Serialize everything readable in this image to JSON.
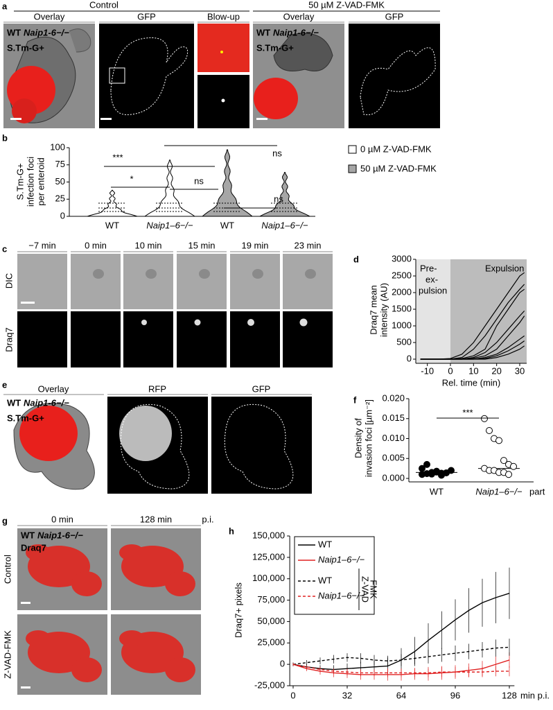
{
  "panel_labels": [
    "a",
    "b",
    "c",
    "d",
    "e",
    "f",
    "g",
    "h"
  ],
  "panel_a": {
    "groups": [
      "Control",
      "50 µM Z-VAD-FMK"
    ],
    "columns": [
      "Overlay",
      "GFP",
      "Blow-up",
      "Overlay",
      "GFP"
    ],
    "overlay_labels": [
      "WT",
      "Naip1-6−/−",
      "S.Tm-G+"
    ]
  },
  "panel_c": {
    "times": [
      "−7 min",
      "0 min",
      "10 min",
      "15 min",
      "19 min",
      "23 min"
    ],
    "rows": [
      "DIC",
      "Draq7"
    ]
  },
  "panel_e": {
    "columns": [
      "Overlay",
      "RFP",
      "GFP"
    ],
    "overlay_labels": [
      "WT",
      "Naip1-6−/−",
      "S.Tm-G+"
    ]
  },
  "panel_g": {
    "columns": [
      "0 min",
      "128 min"
    ],
    "time_unit": "p.i.",
    "rows": [
      "Control",
      "Z-VAD-FMK"
    ],
    "overlay_labels": [
      "WT",
      "Naip1-6−/−",
      "Draq7"
    ]
  },
  "chart_data": [
    {
      "type": "violin",
      "y_label": [
        "S.Tm-G+",
        "infection foci",
        "per enteroid"
      ],
      "categories": [
        "WT",
        "Naip1–6−/−",
        "WT",
        "Naip1–6−/−"
      ],
      "series": [
        {
          "name": "0 µM Z-VAD-FMK",
          "color": "#ffffff",
          "values": [
            38,
            82,
            null,
            null
          ]
        },
        {
          "name": "50 µM Z-VAD-FMK",
          "color": "#a6a6a6",
          "values": [
            null,
            null,
            97,
            64
          ]
        }
      ],
      "ylim": [
        0,
        100
      ],
      "yticks": [
        0,
        25,
        50,
        75,
        100
      ],
      "annotations": [
        "***",
        "*",
        "ns",
        "ns",
        "ns"
      ]
    },
    {
      "type": "line",
      "y_label": [
        "Draq7 mean",
        "intensity (AU)"
      ],
      "x_label": "Rel. time (min)",
      "annotations": [
        "Pre-",
        "ex-",
        "pulsion",
        "Expulsion"
      ],
      "x": [
        -13,
        -10,
        -5,
        0,
        5,
        10,
        15,
        20,
        25,
        30,
        32
      ],
      "series": [
        {
          "color": "#000000",
          "values": [
            0,
            0,
            0,
            20,
            150,
            500,
            1000,
            1500,
            2000,
            2500,
            2600
          ]
        },
        {
          "color": "#000000",
          "values": [
            0,
            0,
            0,
            0,
            50,
            300,
            700,
            1200,
            1700,
            2100,
            2250
          ]
        },
        {
          "color": "#000000",
          "values": [
            0,
            0,
            0,
            0,
            20,
            100,
            300,
            1000,
            1500,
            2000,
            2100
          ]
        },
        {
          "color": "#000000",
          "values": [
            0,
            0,
            0,
            0,
            0,
            50,
            200,
            500,
            900,
            1300,
            1450
          ]
        },
        {
          "color": "#000000",
          "values": [
            0,
            0,
            0,
            0,
            0,
            30,
            100,
            300,
            700,
            1100,
            1300
          ]
        },
        {
          "color": "#000000",
          "values": [
            0,
            0,
            0,
            0,
            0,
            0,
            50,
            150,
            350,
            600,
            700
          ]
        },
        {
          "color": "#000000",
          "values": [
            0,
            0,
            0,
            0,
            0,
            0,
            20,
            100,
            250,
            450,
            550
          ]
        },
        {
          "color": "#000000",
          "values": [
            0,
            0,
            0,
            0,
            0,
            0,
            0,
            50,
            150,
            300,
            400
          ]
        }
      ],
      "xlim": [
        -15,
        33
      ],
      "xticks": [
        -10,
        0,
        10,
        20,
        30
      ],
      "ylim": [
        0,
        3000
      ],
      "yticks": [
        0,
        500,
        1000,
        1500,
        2000,
        2500,
        3000
      ]
    },
    {
      "type": "strip",
      "y_label": [
        "Density of",
        "invasion foci [µm⁻²]"
      ],
      "categories": [
        "WT",
        "Naip1–6−/−"
      ],
      "annotations": [
        "***",
        "part"
      ],
      "values": [
        [
          0.001,
          0.0012,
          0.0015,
          0.0018,
          0.0008,
          0.0014,
          0.002,
          0.0025,
          0.0035,
          0.0011,
          0.0016,
          0.0013
        ],
        [
          0.015,
          0.012,
          0.01,
          0.0095,
          0.0045,
          0.0035,
          0.003,
          0.0025,
          0.002,
          0.002,
          0.0015,
          0.0015,
          0.001
        ]
      ],
      "medians": [
        0.0015,
        0.0025
      ],
      "point_fill": [
        "#000000",
        "#ffffff"
      ],
      "ylim": [
        0,
        0.02
      ],
      "yticks": [
        {
          "value": 0,
          "label": "0.000"
        },
        0.005,
        {
          "value": 0.01,
          "label": "0.010"
        },
        0.015,
        {
          "value": 0.02,
          "label": "0.020"
        }
      ]
    },
    {
      "type": "line",
      "y_label": "Draq7+ pixels",
      "x_label": "min p.i.",
      "legend_group_label": [
        "Z-VAD",
        "FMK"
      ],
      "x": [
        0,
        8,
        16,
        24,
        32,
        40,
        48,
        56,
        64,
        72,
        80,
        88,
        96,
        104,
        112,
        120,
        128
      ],
      "series": [
        {
          "name": "WT",
          "color": "#000000",
          "dash": false,
          "values": [
            0,
            -3000,
            -5000,
            -6000,
            -5000,
            -4000,
            -3000,
            -2000,
            5000,
            15000,
            28000,
            40000,
            52000,
            63000,
            72000,
            78000,
            83000
          ],
          "errors": [
            2000,
            3000,
            4000,
            5000,
            6000,
            7000,
            8000,
            10000,
            14000,
            17000,
            20000,
            22000,
            24000,
            26000,
            28000,
            30000,
            30000
          ]
        },
        {
          "name": "Naip1–6−/−",
          "color": "#e02020",
          "dash": false,
          "values": [
            0,
            -5000,
            -8000,
            -10000,
            -11000,
            -12000,
            -12000,
            -12000,
            -12000,
            -11000,
            -11000,
            -10000,
            -9000,
            -7000,
            -5000,
            0,
            5000
          ],
          "errors": [
            2000,
            3000,
            4000,
            5000,
            5000,
            6000,
            6000,
            7000,
            7000,
            7000,
            8000,
            8000,
            8000,
            8000,
            9000,
            9000,
            9000
          ]
        },
        {
          "name": "WT",
          "color": "#000000",
          "dash": true,
          "values": [
            0,
            2000,
            4000,
            6000,
            8000,
            7000,
            5000,
            4000,
            5000,
            7000,
            9000,
            11000,
            13000,
            15000,
            17000,
            19000,
            20000
          ],
          "errors": [
            2000,
            3000,
            4000,
            5000,
            5000,
            6000,
            6000,
            6000,
            7000,
            7000,
            8000,
            8000,
            9000,
            9000,
            9000,
            10000,
            10000
          ]
        },
        {
          "name": "Naip1–6−/−",
          "color": "#e02020",
          "dash": true,
          "values": [
            0,
            -3000,
            -6000,
            -8000,
            -9000,
            -10000,
            -10000,
            -10000,
            -10000,
            -10000,
            -10000,
            -9000,
            -9000,
            -9000,
            -9000,
            -8000,
            -8000
          ],
          "errors": [
            1500,
            2000,
            3000,
            3000,
            4000,
            4000,
            4000,
            5000,
            5000,
            5000,
            5000,
            6000,
            6000,
            6000,
            6000,
            6000,
            6000
          ]
        }
      ],
      "xlim": [
        -2,
        131
      ],
      "xticks": [
        0,
        32,
        64,
        96,
        128
      ],
      "ylim": [
        -25000,
        150000
      ],
      "yticks": [
        {
          "value": -25000,
          "label": "-25,000"
        },
        0,
        {
          "value": 25000,
          "label": "25,000"
        },
        {
          "value": 50000,
          "label": "50,000"
        },
        {
          "value": 75000,
          "label": "75,000"
        },
        {
          "value": 100000,
          "label": "100,000"
        },
        {
          "value": 125000,
          "label": "125,000"
        },
        {
          "value": 150000,
          "label": "150,000"
        }
      ]
    }
  ]
}
